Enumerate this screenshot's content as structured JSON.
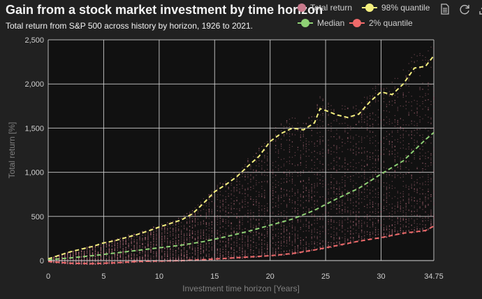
{
  "title": "Gain from a stock market investment by time horizon",
  "subtitle": "Total return from S&P 500 across history by horizon, 1926 to 2021.",
  "legend": [
    {
      "label": "Total return",
      "color": "#c97a8c",
      "marker": "circle"
    },
    {
      "label": "98% quantile",
      "color": "#f5f07f",
      "marker": "line"
    },
    {
      "label": "Median",
      "color": "#8fd175",
      "marker": "line"
    },
    {
      "label": "2% quantile",
      "color": "#ef6a6a",
      "marker": "line"
    }
  ],
  "toolbox": [
    {
      "name": "data-view-icon"
    },
    {
      "name": "restore-icon"
    },
    {
      "name": "save-image-icon"
    }
  ],
  "chart_data": {
    "type": "line",
    "xlabel": "Investment time horizon [Years]",
    "ylabel": "Total return [%]",
    "xlim": [
      0,
      34.75
    ],
    "ylim": [
      0,
      2500
    ],
    "xticks": [
      "0",
      "5",
      "10",
      "15",
      "20",
      "25",
      "30",
      "34.75"
    ],
    "yticks": [
      "0",
      "500",
      "1,000",
      "1,500",
      "2,000",
      "2,500"
    ],
    "grid": true,
    "legend_position": "top-right",
    "scatter_series": {
      "name": "Total return",
      "color": "#c97a8c",
      "description_range_top_at_x_end": 2450
    },
    "series": [
      {
        "name": "98% quantile",
        "color": "#f5f07f",
        "style": "dashed",
        "x": [
          0,
          1,
          2,
          3,
          4,
          5,
          6,
          7,
          8,
          9,
          10,
          11,
          12,
          13,
          14,
          15,
          16,
          17,
          18,
          19,
          20,
          21,
          22,
          23,
          24,
          24.5,
          25,
          26,
          27,
          28,
          29,
          30,
          31,
          32,
          33,
          34,
          34.75
        ],
        "y": [
          20,
          60,
          100,
          130,
          160,
          200,
          225,
          260,
          295,
          335,
          380,
          420,
          460,
          530,
          650,
          780,
          860,
          950,
          1070,
          1180,
          1350,
          1440,
          1500,
          1480,
          1560,
          1720,
          1700,
          1650,
          1620,
          1660,
          1800,
          1910,
          1880,
          2000,
          2180,
          2200,
          2320
        ]
      },
      {
        "name": "Median",
        "color": "#8fd175",
        "style": "dashed",
        "x": [
          0,
          2,
          4,
          6,
          8,
          10,
          12,
          14,
          16,
          18,
          20,
          22,
          24,
          26,
          28,
          30,
          32,
          34,
          34.75
        ],
        "y": [
          10,
          30,
          55,
          85,
          115,
          145,
          175,
          215,
          270,
          330,
          400,
          470,
          570,
          700,
          820,
          980,
          1130,
          1370,
          1450
        ]
      },
      {
        "name": "2% quantile",
        "color": "#ef6a6a",
        "style": "dashed",
        "x": [
          0,
          2,
          4,
          6,
          8,
          10,
          12,
          14,
          16,
          18,
          20,
          22,
          24,
          26,
          28,
          30,
          32,
          34,
          34.75
        ],
        "y": [
          -10,
          -30,
          -35,
          -25,
          -10,
          -5,
          0,
          10,
          25,
          40,
          55,
          80,
          120,
          170,
          220,
          260,
          310,
          340,
          390
        ]
      }
    ]
  }
}
